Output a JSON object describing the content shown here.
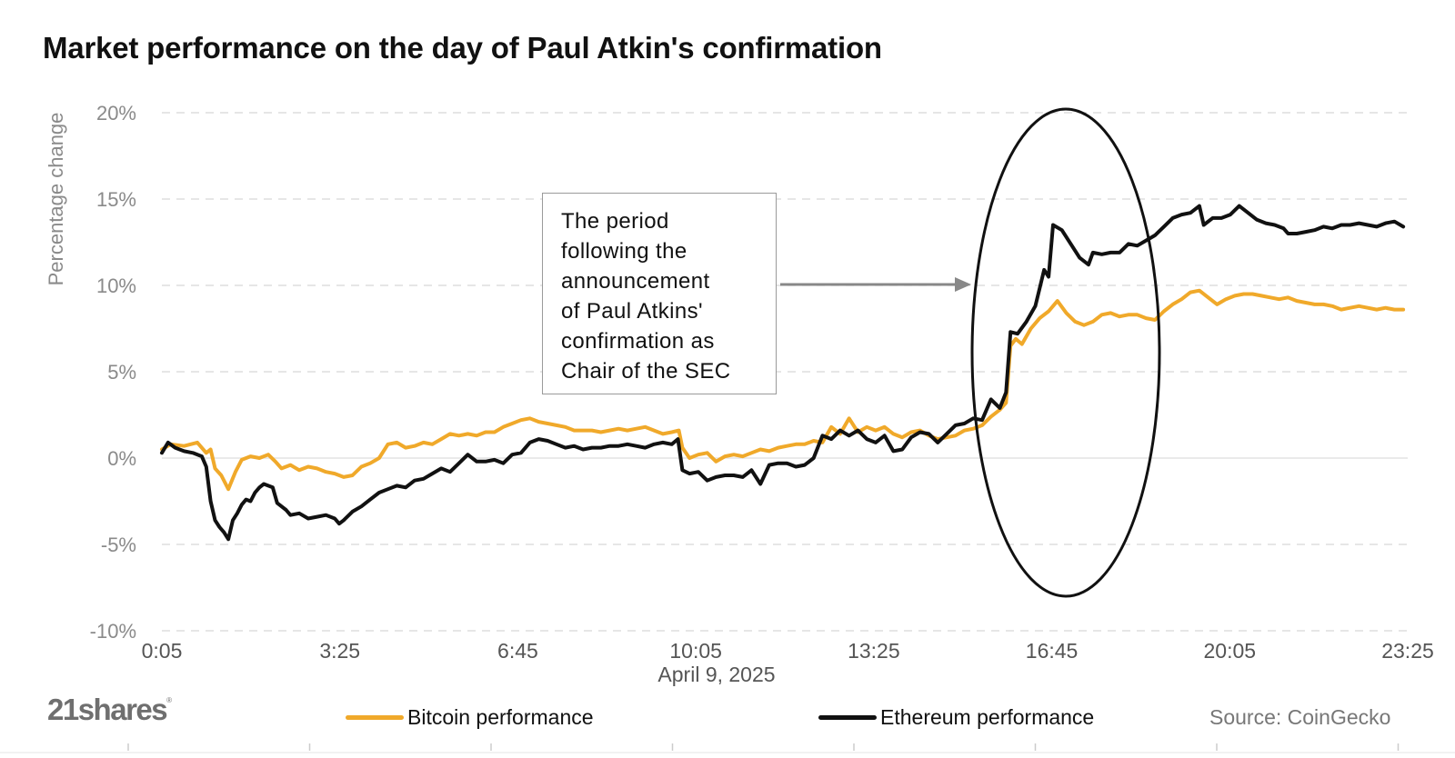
{
  "chart_data": {
    "type": "line",
    "title": "Market performance on the day of Paul Atkin's confirmation",
    "xlabel": "April 9, 2025",
    "ylabel": "Percentage change",
    "x_ticks": [
      "0:05",
      "3:25",
      "6:45",
      "10:05",
      "13:25",
      "16:45",
      "20:05",
      "23:25"
    ],
    "y_ticks": [
      "20%",
      "15%",
      "10%",
      "5%",
      "0%",
      "-5%",
      "-10%"
    ],
    "ylim": [
      -10,
      20
    ],
    "xlim_minutes": [
      5,
      1410
    ],
    "grid": "horizontal dashed",
    "legend_position": "bottom",
    "series": [
      {
        "name": "Bitcoin performance",
        "color": "#f0a92a",
        "points": [
          [
            5,
            0.5
          ],
          [
            15,
            0.8
          ],
          [
            30,
            0.7
          ],
          [
            45,
            0.9
          ],
          [
            55,
            0.3
          ],
          [
            60,
            0.5
          ],
          [
            65,
            -0.6
          ],
          [
            72,
            -1
          ],
          [
            80,
            -1.8
          ],
          [
            88,
            -0.8
          ],
          [
            95,
            -0.1
          ],
          [
            105,
            0.1
          ],
          [
            115,
            0
          ],
          [
            125,
            0.2
          ],
          [
            133,
            -0.2
          ],
          [
            140,
            -0.6
          ],
          [
            150,
            -0.4
          ],
          [
            160,
            -0.7
          ],
          [
            170,
            -0.5
          ],
          [
            180,
            -0.6
          ],
          [
            190,
            -0.8
          ],
          [
            200,
            -0.9
          ],
          [
            210,
            -1.1
          ],
          [
            220,
            -1
          ],
          [
            230,
            -0.5
          ],
          [
            240,
            -0.3
          ],
          [
            250,
            0
          ],
          [
            260,
            0.8
          ],
          [
            270,
            0.9
          ],
          [
            280,
            0.6
          ],
          [
            290,
            0.7
          ],
          [
            300,
            0.9
          ],
          [
            310,
            0.8
          ],
          [
            320,
            1.1
          ],
          [
            330,
            1.4
          ],
          [
            340,
            1.3
          ],
          [
            350,
            1.4
          ],
          [
            360,
            1.3
          ],
          [
            370,
            1.5
          ],
          [
            380,
            1.5
          ],
          [
            390,
            1.8
          ],
          [
            400,
            2
          ],
          [
            410,
            2.2
          ],
          [
            420,
            2.3
          ],
          [
            430,
            2.1
          ],
          [
            440,
            2
          ],
          [
            450,
            1.9
          ],
          [
            460,
            1.8
          ],
          [
            470,
            1.6
          ],
          [
            480,
            1.6
          ],
          [
            490,
            1.6
          ],
          [
            500,
            1.5
          ],
          [
            510,
            1.6
          ],
          [
            520,
            1.7
          ],
          [
            530,
            1.6
          ],
          [
            540,
            1.7
          ],
          [
            550,
            1.8
          ],
          [
            560,
            1.6
          ],
          [
            570,
            1.4
          ],
          [
            580,
            1.5
          ],
          [
            588,
            1.6
          ],
          [
            592,
            0.6
          ],
          [
            600,
            0
          ],
          [
            610,
            0.2
          ],
          [
            620,
            0.3
          ],
          [
            630,
            -0.2
          ],
          [
            640,
            0.1
          ],
          [
            650,
            0.2
          ],
          [
            660,
            0.1
          ],
          [
            670,
            0.3
          ],
          [
            680,
            0.5
          ],
          [
            690,
            0.4
          ],
          [
            700,
            0.6
          ],
          [
            710,
            0.7
          ],
          [
            720,
            0.8
          ],
          [
            730,
            0.8
          ],
          [
            740,
            1
          ],
          [
            750,
            0.9
          ],
          [
            760,
            1.8
          ],
          [
            770,
            1.4
          ],
          [
            780,
            2.3
          ],
          [
            790,
            1.5
          ],
          [
            800,
            1.8
          ],
          [
            810,
            1.6
          ],
          [
            820,
            1.8
          ],
          [
            830,
            1.4
          ],
          [
            840,
            1.2
          ],
          [
            850,
            1.5
          ],
          [
            860,
            1.6
          ],
          [
            870,
            1.3
          ],
          [
            880,
            1.1
          ],
          [
            890,
            1.2
          ],
          [
            900,
            1.3
          ],
          [
            910,
            1.6
          ],
          [
            920,
            1.7
          ],
          [
            930,
            1.9
          ],
          [
            940,
            2.4
          ],
          [
            950,
            2.8
          ],
          [
            957,
            3.2
          ],
          [
            962,
            6.5
          ],
          [
            968,
            6.9
          ],
          [
            975,
            6.6
          ],
          [
            985,
            7.5
          ],
          [
            995,
            8.1
          ],
          [
            1005,
            8.5
          ],
          [
            1015,
            9.1
          ],
          [
            1025,
            8.4
          ],
          [
            1035,
            7.9
          ],
          [
            1045,
            7.7
          ],
          [
            1055,
            7.9
          ],
          [
            1065,
            8.3
          ],
          [
            1075,
            8.4
          ],
          [
            1085,
            8.2
          ],
          [
            1095,
            8.3
          ],
          [
            1105,
            8.3
          ],
          [
            1115,
            8.1
          ],
          [
            1125,
            8
          ],
          [
            1135,
            8.5
          ],
          [
            1145,
            8.9
          ],
          [
            1155,
            9.2
          ],
          [
            1165,
            9.6
          ],
          [
            1175,
            9.7
          ],
          [
            1185,
            9.3
          ],
          [
            1195,
            8.9
          ],
          [
            1205,
            9.2
          ],
          [
            1215,
            9.4
          ],
          [
            1225,
            9.5
          ],
          [
            1235,
            9.5
          ],
          [
            1245,
            9.4
          ],
          [
            1255,
            9.3
          ],
          [
            1265,
            9.2
          ],
          [
            1275,
            9.3
          ],
          [
            1285,
            9.1
          ],
          [
            1295,
            9
          ],
          [
            1305,
            8.9
          ],
          [
            1315,
            8.9
          ],
          [
            1325,
            8.8
          ],
          [
            1335,
            8.6
          ],
          [
            1345,
            8.7
          ],
          [
            1355,
            8.8
          ],
          [
            1365,
            8.7
          ],
          [
            1375,
            8.6
          ],
          [
            1385,
            8.7
          ],
          [
            1395,
            8.6
          ],
          [
            1405,
            8.6
          ]
        ]
      },
      {
        "name": "Ethereum performance",
        "color": "#111111",
        "points": [
          [
            5,
            0.3
          ],
          [
            12,
            0.9
          ],
          [
            20,
            0.6
          ],
          [
            30,
            0.4
          ],
          [
            40,
            0.3
          ],
          [
            50,
            0.1
          ],
          [
            55,
            -0.5
          ],
          [
            60,
            -2.5
          ],
          [
            65,
            -3.6
          ],
          [
            70,
            -4
          ],
          [
            75,
            -4.3
          ],
          [
            80,
            -4.7
          ],
          [
            85,
            -3.6
          ],
          [
            90,
            -3.2
          ],
          [
            95,
            -2.7
          ],
          [
            100,
            -2.4
          ],
          [
            105,
            -2.5
          ],
          [
            110,
            -2
          ],
          [
            115,
            -1.7
          ],
          [
            120,
            -1.5
          ],
          [
            130,
            -1.7
          ],
          [
            135,
            -2.6
          ],
          [
            140,
            -2.8
          ],
          [
            145,
            -3
          ],
          [
            150,
            -3.3
          ],
          [
            160,
            -3.2
          ],
          [
            170,
            -3.5
          ],
          [
            180,
            -3.4
          ],
          [
            190,
            -3.3
          ],
          [
            200,
            -3.5
          ],
          [
            205,
            -3.8
          ],
          [
            210,
            -3.6
          ],
          [
            220,
            -3.1
          ],
          [
            230,
            -2.8
          ],
          [
            240,
            -2.4
          ],
          [
            250,
            -2
          ],
          [
            260,
            -1.8
          ],
          [
            270,
            -1.6
          ],
          [
            280,
            -1.7
          ],
          [
            290,
            -1.3
          ],
          [
            300,
            -1.2
          ],
          [
            310,
            -0.9
          ],
          [
            320,
            -0.6
          ],
          [
            330,
            -0.8
          ],
          [
            340,
            -0.3
          ],
          [
            350,
            0.2
          ],
          [
            360,
            -0.2
          ],
          [
            370,
            -0.2
          ],
          [
            380,
            -0.1
          ],
          [
            390,
            -0.3
          ],
          [
            400,
            0.2
          ],
          [
            410,
            0.3
          ],
          [
            420,
            0.9
          ],
          [
            430,
            1.1
          ],
          [
            440,
            1
          ],
          [
            450,
            0.8
          ],
          [
            460,
            0.6
          ],
          [
            470,
            0.7
          ],
          [
            480,
            0.5
          ],
          [
            490,
            0.6
          ],
          [
            500,
            0.6
          ],
          [
            510,
            0.7
          ],
          [
            520,
            0.7
          ],
          [
            530,
            0.8
          ],
          [
            540,
            0.7
          ],
          [
            550,
            0.6
          ],
          [
            560,
            0.8
          ],
          [
            570,
            0.9
          ],
          [
            580,
            0.8
          ],
          [
            587,
            1.1
          ],
          [
            592,
            -0.7
          ],
          [
            600,
            -0.9
          ],
          [
            610,
            -0.8
          ],
          [
            620,
            -1.3
          ],
          [
            630,
            -1.1
          ],
          [
            640,
            -1
          ],
          [
            650,
            -1
          ],
          [
            660,
            -1.1
          ],
          [
            670,
            -0.7
          ],
          [
            680,
            -1.5
          ],
          [
            690,
            -0.4
          ],
          [
            700,
            -0.3
          ],
          [
            710,
            -0.3
          ],
          [
            720,
            -0.5
          ],
          [
            730,
            -0.4
          ],
          [
            740,
            0
          ],
          [
            750,
            1.3
          ],
          [
            760,
            1.1
          ],
          [
            770,
            1.6
          ],
          [
            780,
            1.3
          ],
          [
            790,
            1.6
          ],
          [
            800,
            1.1
          ],
          [
            810,
            0.9
          ],
          [
            820,
            1.3
          ],
          [
            830,
            0.4
          ],
          [
            840,
            0.5
          ],
          [
            850,
            1.2
          ],
          [
            860,
            1.5
          ],
          [
            870,
            1.4
          ],
          [
            880,
            0.9
          ],
          [
            890,
            1.4
          ],
          [
            900,
            1.9
          ],
          [
            910,
            2
          ],
          [
            920,
            2.3
          ],
          [
            930,
            2.2
          ],
          [
            940,
            3.4
          ],
          [
            950,
            2.9
          ],
          [
            957,
            3.8
          ],
          [
            962,
            7.3
          ],
          [
            970,
            7.2
          ],
          [
            980,
            7.9
          ],
          [
            990,
            8.8
          ],
          [
            1000,
            10.9
          ],
          [
            1005,
            10.5
          ],
          [
            1010,
            13.5
          ],
          [
            1020,
            13.2
          ],
          [
            1030,
            12.4
          ],
          [
            1040,
            11.6
          ],
          [
            1050,
            11.2
          ],
          [
            1055,
            11.9
          ],
          [
            1065,
            11.8
          ],
          [
            1075,
            11.9
          ],
          [
            1085,
            11.9
          ],
          [
            1095,
            12.4
          ],
          [
            1105,
            12.3
          ],
          [
            1115,
            12.6
          ],
          [
            1125,
            12.9
          ],
          [
            1135,
            13.4
          ],
          [
            1145,
            13.9
          ],
          [
            1155,
            14.1
          ],
          [
            1165,
            14.2
          ],
          [
            1175,
            14.6
          ],
          [
            1180,
            13.5
          ],
          [
            1190,
            13.9
          ],
          [
            1200,
            13.9
          ],
          [
            1210,
            14.1
          ],
          [
            1220,
            14.6
          ],
          [
            1230,
            14.2
          ],
          [
            1240,
            13.8
          ],
          [
            1250,
            13.6
          ],
          [
            1260,
            13.5
          ],
          [
            1270,
            13.3
          ],
          [
            1275,
            13
          ],
          [
            1285,
            13
          ],
          [
            1295,
            13.1
          ],
          [
            1305,
            13.2
          ],
          [
            1315,
            13.4
          ],
          [
            1325,
            13.3
          ],
          [
            1335,
            13.5
          ],
          [
            1345,
            13.5
          ],
          [
            1355,
            13.6
          ],
          [
            1365,
            13.5
          ],
          [
            1375,
            13.4
          ],
          [
            1385,
            13.6
          ],
          [
            1395,
            13.7
          ],
          [
            1405,
            13.4
          ]
        ]
      }
    ],
    "annotation": {
      "lines": [
        "The period",
        "following the",
        "announcement",
        "of Paul Atkins'",
        "confirmation as",
        "Chair of the SEC"
      ],
      "highlight": "ellipse around 16:45–19:00 range"
    },
    "source": "Source: CoinGecko",
    "brand": "21shares"
  }
}
